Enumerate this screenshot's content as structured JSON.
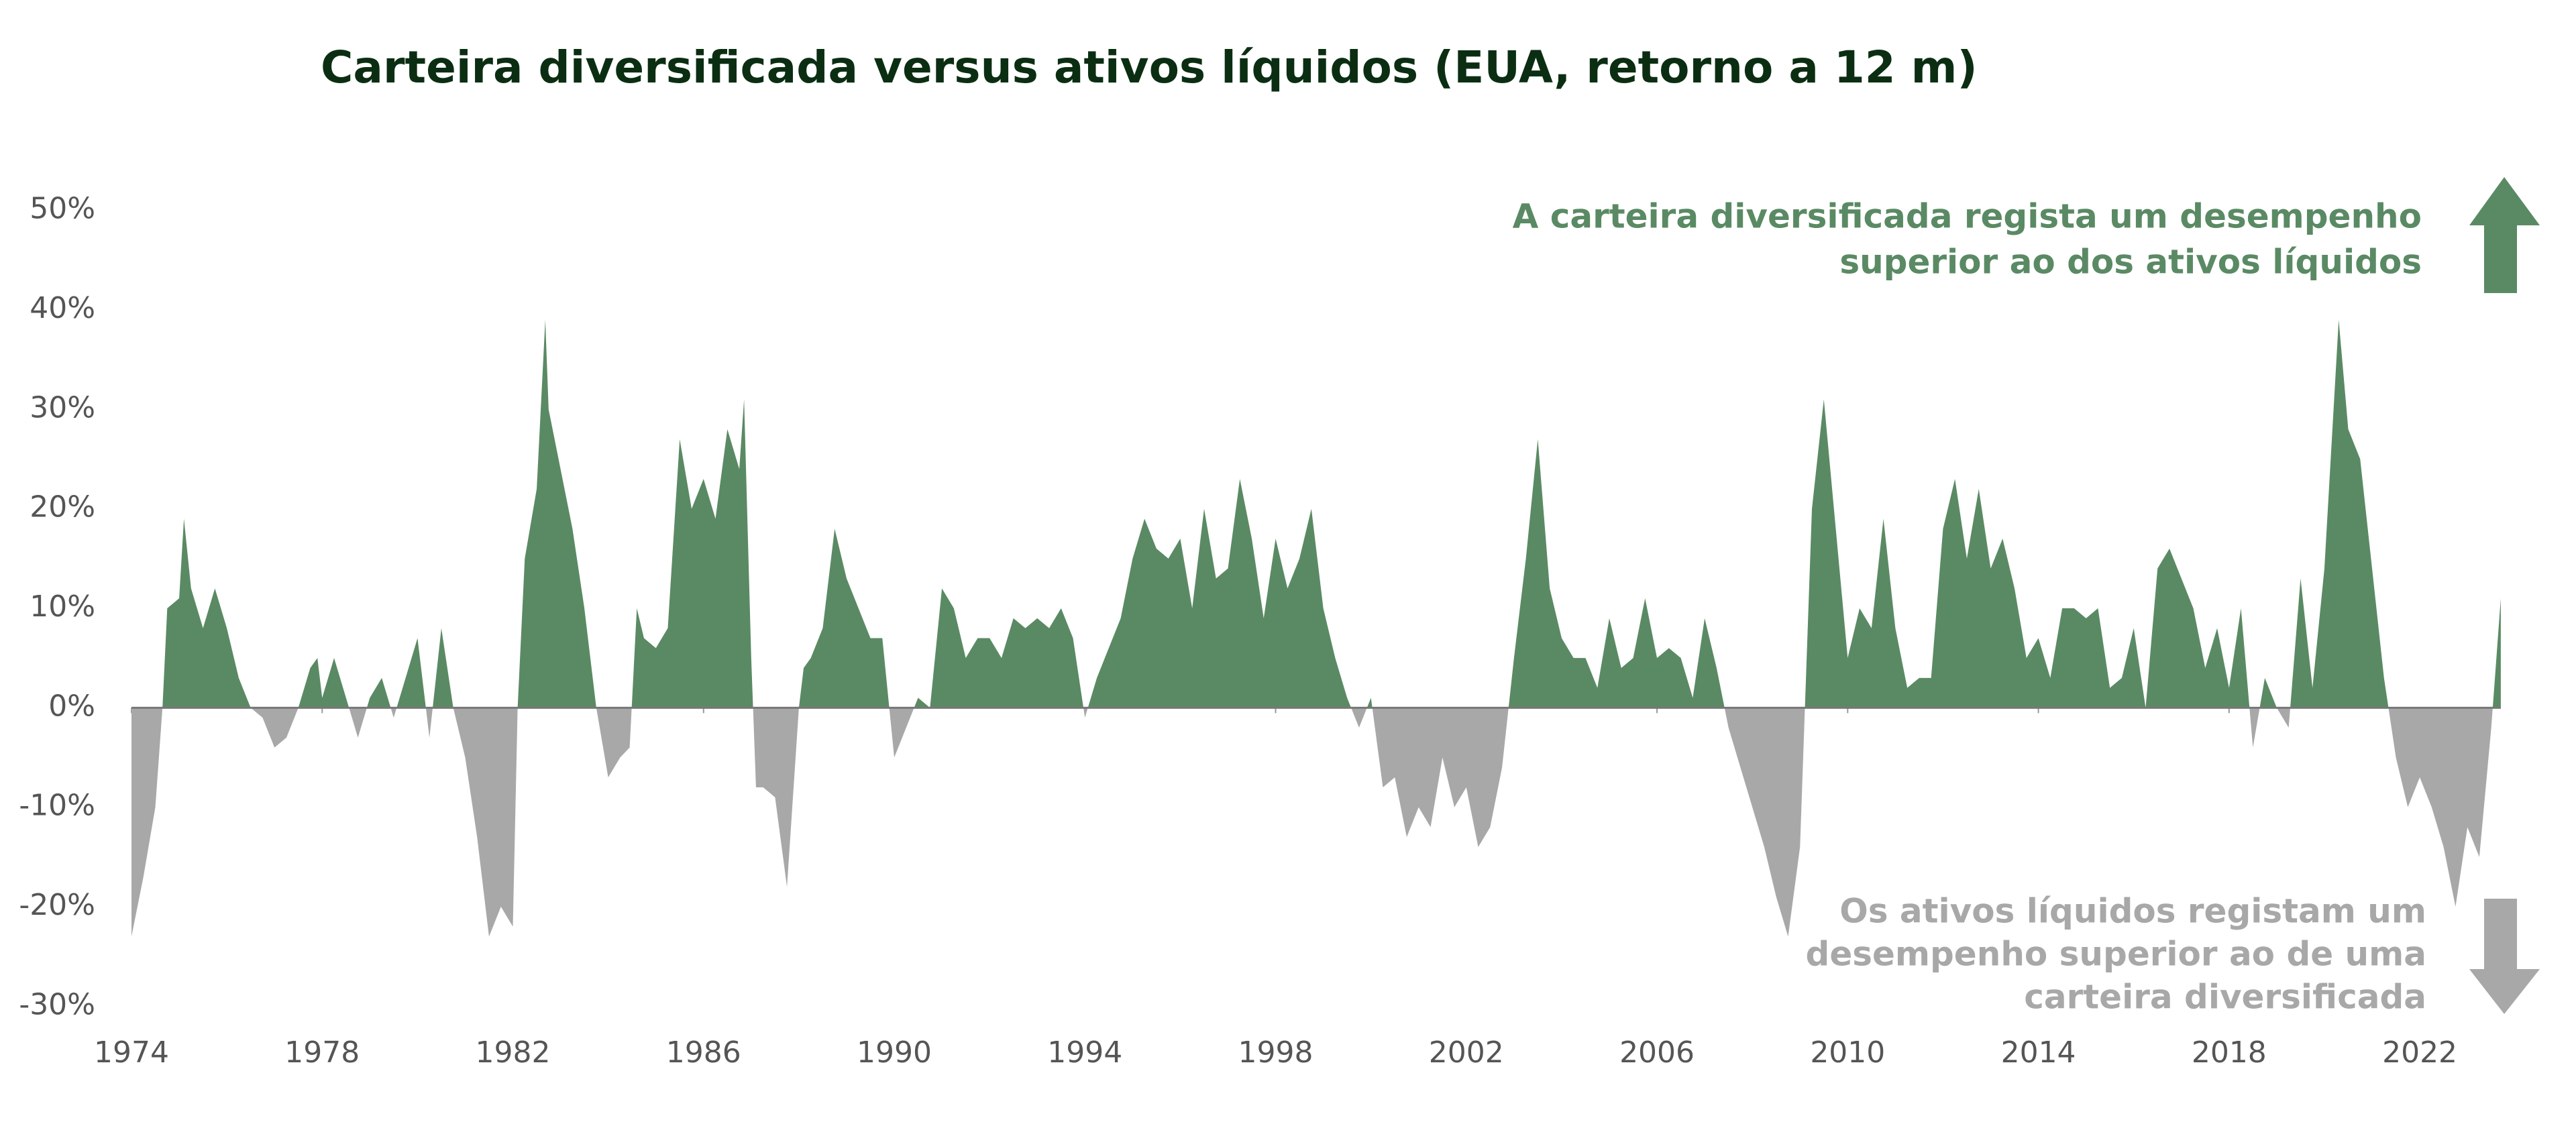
{
  "chart_data": {
    "type": "area",
    "title": "Carteira diversificada versus ativos líquidos (EUA, retorno a 12 m)",
    "x": [
      1974,
      1974.25,
      1974.5,
      1974.65,
      1974.75,
      1975,
      1975.1,
      1975.25,
      1975.5,
      1975.75,
      1976,
      1976.25,
      1976.5,
      1976.75,
      1977,
      1977.25,
      1977.5,
      1977.75,
      1977.9,
      1978,
      1978.25,
      1978.5,
      1978.75,
      1979,
      1979.25,
      1979.5,
      1979.75,
      1980,
      1980.25,
      1980.5,
      1980.75,
      1981,
      1981.25,
      1981.5,
      1981.75,
      1982,
      1982.1,
      1982.25,
      1982.5,
      1982.68,
      1982.75,
      1983,
      1983.25,
      1983.5,
      1983.75,
      1984,
      1984.25,
      1984.45,
      1984.6,
      1984.75,
      1985,
      1985.25,
      1985.5,
      1985.75,
      1986,
      1986.25,
      1986.5,
      1986.75,
      1986.85,
      1987,
      1987.1,
      1987.25,
      1987.5,
      1987.75,
      1988,
      1988.1,
      1988.25,
      1988.5,
      1988.75,
      1989,
      1989.25,
      1989.5,
      1989.75,
      1990,
      1990.25,
      1990.5,
      1990.75,
      1991,
      1991.25,
      1991.5,
      1991.75,
      1992,
      1992.25,
      1992.5,
      1992.75,
      1993,
      1993.25,
      1993.5,
      1993.75,
      1994,
      1994.25,
      1994.5,
      1994.75,
      1995,
      1995.25,
      1995.5,
      1995.75,
      1996,
      1996.25,
      1996.5,
      1996.75,
      1997,
      1997.25,
      1997.5,
      1997.75,
      1998,
      1998.25,
      1998.5,
      1998.75,
      1999,
      1999.25,
      1999.5,
      1999.75,
      2000,
      2000.25,
      2000.5,
      2000.75,
      2001,
      2001.25,
      2001.5,
      2001.75,
      2002,
      2002.25,
      2002.5,
      2002.75,
      2003,
      2003.25,
      2003.5,
      2003.75,
      2004,
      2004.25,
      2004.5,
      2004.75,
      2005,
      2005.25,
      2005.5,
      2005.75,
      2006,
      2006.25,
      2006.5,
      2006.75,
      2007,
      2007.25,
      2007.5,
      2007.75,
      2008,
      2008.25,
      2008.5,
      2008.75,
      2009,
      2009.25,
      2009.5,
      2009.75,
      2010,
      2010.25,
      2010.5,
      2010.75,
      2011,
      2011.25,
      2011.5,
      2011.75,
      2012,
      2012.25,
      2012.5,
      2012.75,
      2013,
      2013.25,
      2013.5,
      2013.75,
      2014,
      2014.25,
      2014.5,
      2014.75,
      2015,
      2015.25,
      2015.5,
      2015.75,
      2016,
      2016.25,
      2016.5,
      2016.75,
      2017,
      2017.25,
      2017.5,
      2017.75,
      2018,
      2018.25,
      2018.5,
      2018.75,
      2019,
      2019.25,
      2019.5,
      2019.75,
      2020,
      2020.3,
      2020.5,
      2020.75,
      2021,
      2021.25,
      2021.5,
      2021.75,
      2022,
      2022.25,
      2022.5,
      2022.75,
      2023,
      2023.25,
      2023.5,
      2023.7
    ],
    "values": [
      -23,
      -17,
      -10,
      0,
      10,
      11,
      19,
      12,
      8,
      12,
      8,
      3,
      0,
      -1,
      -4,
      -3,
      0,
      4,
      5,
      1,
      5,
      1,
      -3,
      1,
      3,
      -1,
      3,
      7,
      -3,
      8,
      0,
      -5,
      -13,
      -23,
      -20,
      -22,
      0,
      15,
      22,
      39,
      30,
      24,
      18,
      10,
      0,
      -7,
      -5,
      -4,
      10,
      7,
      6,
      8,
      27,
      20,
      23,
      19,
      28,
      24,
      31,
      5,
      -8,
      -8,
      -9,
      -18,
      0,
      4,
      5,
      8,
      18,
      13,
      10,
      7,
      7,
      -5,
      -2,
      1,
      0,
      12,
      10,
      5,
      7,
      7,
      5,
      9,
      8,
      9,
      8,
      10,
      7,
      -1,
      3,
      6,
      9,
      15,
      19,
      16,
      15,
      17,
      10,
      20,
      13,
      14,
      23,
      17,
      9,
      17,
      12,
      15,
      20,
      10,
      5,
      1,
      -2,
      1,
      -8,
      -7,
      -13,
      -10,
      -12,
      -5,
      -10,
      -8,
      -14,
      -12,
      -6,
      5,
      15,
      27,
      12,
      7,
      5,
      5,
      2,
      9,
      4,
      5,
      11,
      5,
      6,
      5,
      1,
      9,
      4,
      -2,
      -6,
      -10,
      -14,
      -19,
      -23,
      -14,
      20,
      31,
      18,
      5,
      10,
      8,
      19,
      8,
      2,
      3,
      3,
      18,
      23,
      15,
      22,
      14,
      17,
      12,
      5,
      7,
      3,
      10,
      10,
      9,
      10,
      2,
      3,
      8,
      0,
      14,
      16,
      13,
      10,
      4,
      8,
      2,
      10,
      -4,
      3,
      0,
      -2,
      13,
      2,
      14,
      39,
      28,
      25,
      14,
      3,
      -5,
      -10,
      -7,
      -10,
      -14,
      -20,
      -12,
      -15,
      -2,
      11
    ],
    "positive_color": "#5a8a64",
    "negative_color": "#a8a8a8",
    "xlim": [
      1974,
      2023.8
    ],
    "xticks": [
      1974,
      1978,
      1982,
      1986,
      1990,
      1994,
      1998,
      2002,
      2006,
      2010,
      2014,
      2018,
      2022
    ],
    "ylim": [
      -32,
      52
    ],
    "yticks": [
      {
        "value": -30,
        "label": "-30%"
      },
      {
        "value": -20,
        "label": "-20%"
      },
      {
        "value": -10,
        "label": "-10%"
      },
      {
        "value": 0,
        "label": "0%"
      },
      {
        "value": 10,
        "label": "10%"
      },
      {
        "value": 20,
        "label": "20%"
      },
      {
        "value": 30,
        "label": "30%"
      },
      {
        "value": 40,
        "label": "40%"
      },
      {
        "value": 50,
        "label": "50%"
      }
    ],
    "annotations": {
      "positive": [
        "A carteira diversificada regista um desempenho",
        "superior ao dos ativos líquidos"
      ],
      "negative": [
        "Os ativos líquidos registam um",
        "desempenho superior ao de uma",
        "carteira diversificada"
      ]
    }
  }
}
